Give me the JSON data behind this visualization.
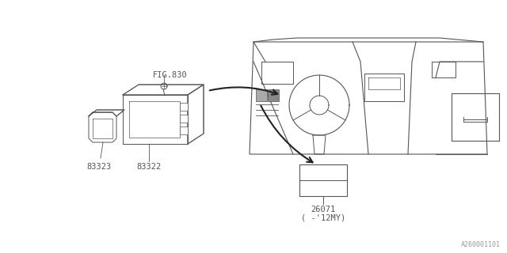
{
  "bg_color": "#ffffff",
  "line_color": "#555555",
  "text_color": "#555555",
  "fig_width": 6.4,
  "fig_height": 3.2,
  "dpi": 100,
  "watermark": "A260001101",
  "labels": {
    "fig830": "FIG.830",
    "part83323": "83323",
    "part83322": "83322",
    "part26071": "26071",
    "part26071_note": "( -'12MY)"
  }
}
